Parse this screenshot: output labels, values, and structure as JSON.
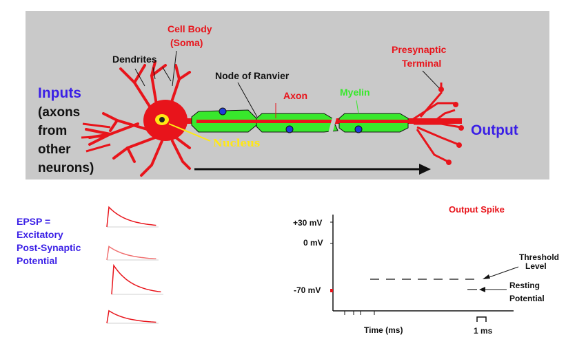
{
  "neuron": {
    "cell_body": "Cell Body",
    "soma": "(Soma)",
    "dendrites": "Dendrites",
    "node_of_ranvier": "Node of Ranvier",
    "axon": "Axon",
    "myelin": "Myelin",
    "presynaptic_1": "Presynaptic",
    "presynaptic_2": "Terminal",
    "nucleus": "Nucleus",
    "inputs_title": "Inputs",
    "inputs_lines": [
      "(axons",
      "from",
      "other",
      "neurons)"
    ],
    "output": "Output"
  },
  "epsp": {
    "lines": [
      "EPSP =",
      "Excitatory",
      "Post-Synaptic",
      "Potential"
    ],
    "curves": [
      {
        "amplitude": 0.9,
        "color": "#e8141b"
      },
      {
        "amplitude": 0.7,
        "color": "#f07070"
      },
      {
        "amplitude": 1.0,
        "color": "#e8141b"
      },
      {
        "amplitude": 0.7,
        "color": "#e8141b"
      }
    ]
  },
  "spike_plot": {
    "title": "Output Spike",
    "ticks": [
      "+30 mV",
      "0 mV",
      "-70 mV"
    ],
    "threshold_1": "Threshold",
    "threshold_2": "Level",
    "resting_1": "Resting",
    "resting_2": "Potential",
    "xlabel": "Time (ms)",
    "scale": "1 ms",
    "colors": {
      "marker": "#e8141b",
      "title": "#e8141b"
    }
  }
}
